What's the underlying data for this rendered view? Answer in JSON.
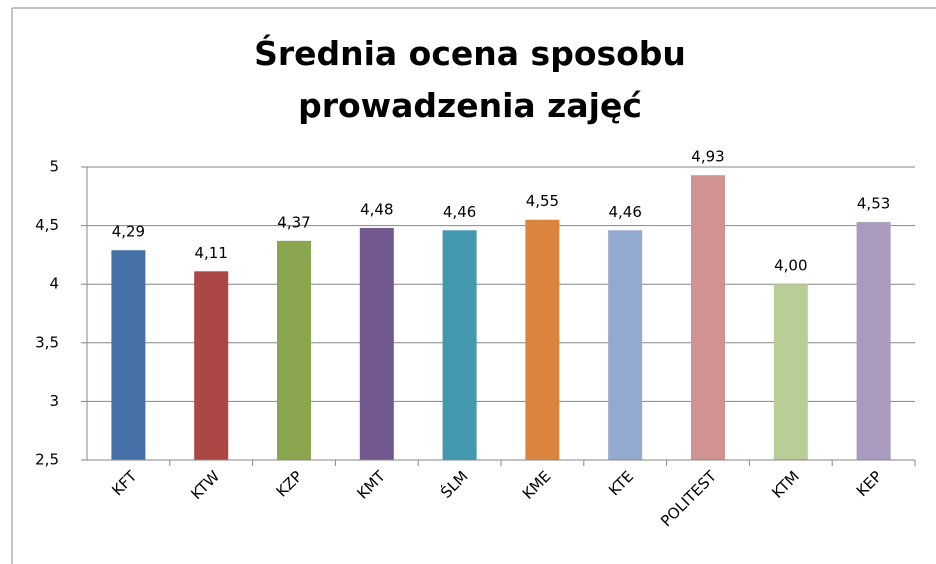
{
  "chart_data": {
    "type": "bar",
    "title": "Średnia ocena sposobu prowadzenia zajęć",
    "categories": [
      "KFT",
      "KTW",
      "KZP",
      "KMT",
      "ŚLM",
      "KME",
      "KTE",
      "POLITEST",
      "KTM",
      "KEP"
    ],
    "values": [
      4.29,
      4.11,
      4.37,
      4.48,
      4.46,
      4.55,
      4.46,
      4.93,
      4.0,
      4.53
    ],
    "value_labels": [
      "4,29",
      "4,11",
      "4,37",
      "4,48",
      "4,46",
      "4,55",
      "4,46",
      "4,93",
      "4,00",
      "4,53"
    ],
    "colors": [
      "#4571a8",
      "#aa4644",
      "#89a54e",
      "#71588f",
      "#4198af",
      "#db843d",
      "#93a9cf",
      "#d19392",
      "#b9cd96",
      "#a99bbd"
    ],
    "ylim": [
      2.5,
      5
    ],
    "yticks": [
      {
        "value": 2.5,
        "label": "2,5"
      },
      3,
      {
        "value": 3.5,
        "label": "3,5"
      },
      4,
      {
        "value": 4.5,
        "label": "4,5"
      },
      5
    ],
    "grid": true
  }
}
